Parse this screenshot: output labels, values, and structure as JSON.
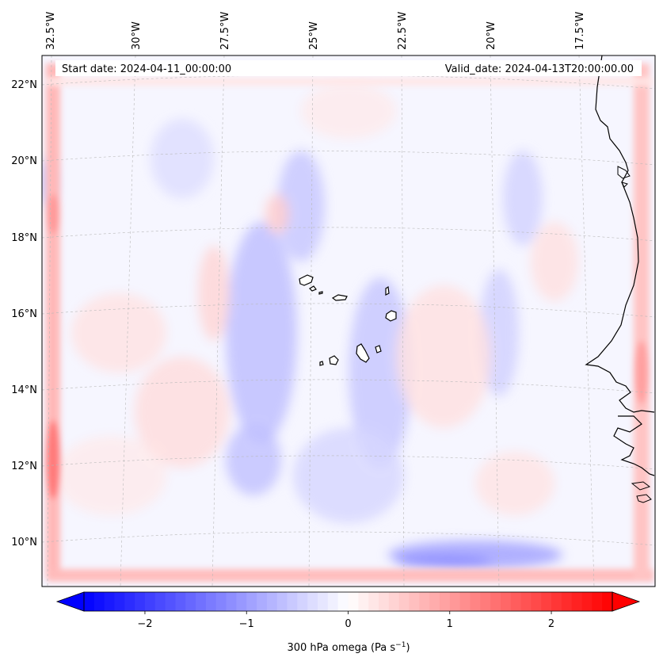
{
  "header": {
    "start_date": "Start date: 2024-04-11_00:00:00",
    "valid_date": "Valid_date: 2024-04-13T20:00:00.00"
  },
  "map": {
    "projection": "Lambert conformal",
    "field": "300 hPa omega",
    "longitude_labels": [
      "32.5°W",
      "30°W",
      "27.5°W",
      "25°W",
      "22.5°W",
      "20°W",
      "17.5°W"
    ],
    "latitude_labels": [
      "22°N",
      "20°N",
      "18°N",
      "16°N",
      "14°N",
      "12°N",
      "10°N"
    ],
    "features": [
      "Cabo Verde islands",
      "West African coastline"
    ]
  },
  "colorbar": {
    "label": "300 hPa omega (Pa s",
    "label_unit_exponent": "−1",
    "label_suffix": ")",
    "ticks": [
      "−2",
      "−1",
      "0",
      "1",
      "2"
    ],
    "range": [
      -2.6,
      2.6
    ],
    "colormap": "bwr",
    "colors": {
      "min": "#0000ff",
      "mid": "#ffffff",
      "max": "#ff0000"
    }
  }
}
